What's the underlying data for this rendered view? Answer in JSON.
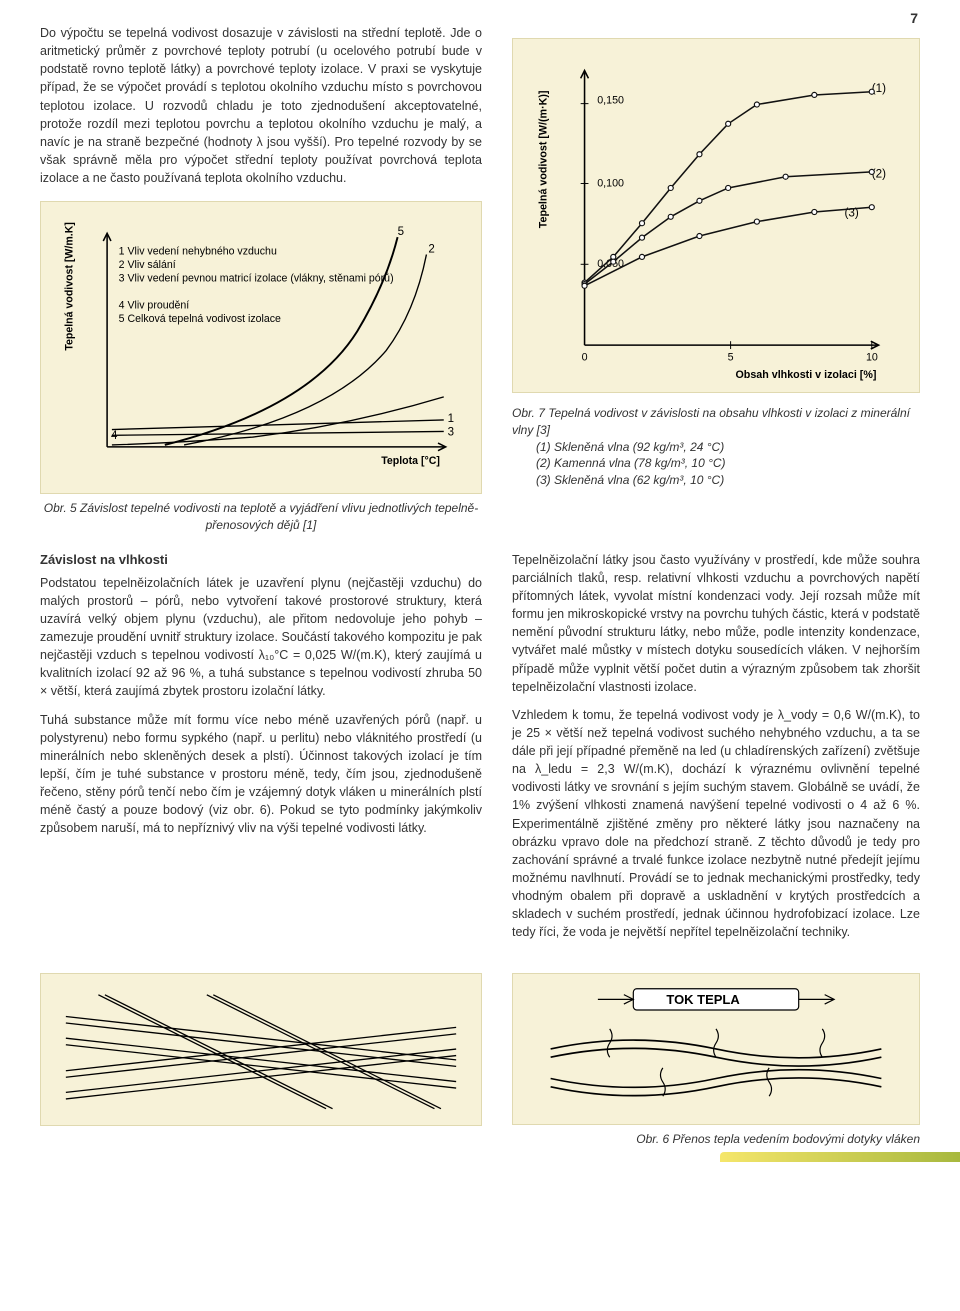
{
  "page_number": "7",
  "intro_paragraph": "Do výpočtu se tepelná vodivost dosazuje v závislosti na střední teplotě. Jde o aritmetický průměr z povrchové teploty potrubí (u ocelového potrubí bude v podstatě rovno teplotě látky) a povrchové teploty izolace. V praxi se vyskytuje případ, že se výpočet provádí s teplotou okolního vzduchu místo s povrchovou teplotou izolace. U rozvodů chladu je toto zjednodušení akceptovatelné, protože rozdíl mezi teplotou povrchu a teplotou okolního vzduchu je malý, a navíc je na straně bezpečné (hodnoty λ jsou vyšší). Pro tepelné rozvody by se však správně měla pro výpočet střední teploty používat povrchová teplota izolace a ne často používaná teplota okolního vzduchu.",
  "fig5": {
    "y_axis_label": "Tepelná vodivost [W/m.K]",
    "x_axis_label": "Teplota [°C]",
    "legend": [
      "1  Vliv vedení nehybného vzduchu",
      "2  Vliv sálání",
      "3  Vliv vedení pevnou matricí izolace (vlákny, stěnami pórů)",
      "4  Vliv proudění",
      "5  Celková tepelná vodivost izolace"
    ],
    "curve_labels": [
      "1",
      "2",
      "3",
      "4",
      "5"
    ],
    "background": "#f7f2d8",
    "line_color": "#111111",
    "caption": "Obr. 5  Závislost tepelné vodivosti na teplotě a vyjádření vlivu jednotlivých tepelně-přenosových dějů [1]"
  },
  "fig7": {
    "y_axis_label": "Tepelná vodivost [W/(m·K)]",
    "x_axis_label": "Obsah vlhkosti v izolaci [%]",
    "y_ticks": [
      "0,050",
      "0,100",
      "0,150"
    ],
    "x_ticks": [
      "0",
      "5",
      "10"
    ],
    "series_labels": [
      "(1)",
      "(2)",
      "(3)"
    ],
    "series": [
      {
        "label": "(1)",
        "points": [
          [
            0,
            0.039
          ],
          [
            1,
            0.055
          ],
          [
            2,
            0.076
          ],
          [
            3,
            0.098
          ],
          [
            4,
            0.119
          ],
          [
            5,
            0.138
          ],
          [
            6,
            0.15
          ],
          [
            8,
            0.156
          ],
          [
            10,
            0.158
          ]
        ]
      },
      {
        "label": "(2)",
        "points": [
          [
            0,
            0.038
          ],
          [
            1,
            0.052
          ],
          [
            2,
            0.067
          ],
          [
            3,
            0.08
          ],
          [
            4,
            0.09
          ],
          [
            5,
            0.098
          ],
          [
            7,
            0.105
          ],
          [
            10,
            0.108
          ]
        ]
      },
      {
        "label": "(3)",
        "points": [
          [
            0,
            0.037
          ],
          [
            2,
            0.055
          ],
          [
            4,
            0.068
          ],
          [
            6,
            0.077
          ],
          [
            8,
            0.083
          ],
          [
            10,
            0.086
          ]
        ]
      }
    ],
    "ylim": [
      0,
      0.17
    ],
    "xlim": [
      0,
      10
    ],
    "background": "#f7f2d8",
    "line_color": "#111111",
    "marker": "circle",
    "caption_title": "Obr. 7  Tepelná vodivost v závislosti na obsahu vlhkosti v izolaci z minerální vlny [3]",
    "caption_lines": [
      "(1) Skleněná vlna (92 kg/m³, 24 °C)",
      "(2) Kamenná vlna (78 kg/m³, 10 °C)",
      "(3) Skleněná vlna (62 kg/m³, 10 °C)"
    ]
  },
  "dep_heading": "Závislost na vlhkosti",
  "dep_p1": "Podstatou tepelněizolačních látek je uzavření plynu (nejčastěji vzduchu) do malých prostorů – pórů, nebo vytvoření takové prostorové struktury, která uzavírá velký objem plynu (vzduchu), ale přitom nedovoluje jeho pohyb – zamezuje proudění uvnitř struktury izolace. Součástí takového kompozitu je pak nejčastěji vzduch s tepelnou vodivostí λ₁₀°C = 0,025 W/(m.K), který zaujímá u kvalitních izolací 92 až 96 %, a tuhá substance s tepelnou vodivostí zhruba 50 × větší, která zaujímá zbytek prostoru izolační látky.",
  "dep_p2": "Tuhá substance může mít formu více nebo méně uzavřených pórů (např. u polystyrenu) nebo formu sypkého (např. u perlitu) nebo vláknitého prostředí (u minerálních nebo skleněných desek a plstí). Účinnost takových izolací je tím lepší, čím je tuhé substance v prostoru méně, tedy, čím jsou, zjednodušeně řečeno, stěny pórů tenčí nebo čím je vzájemný dotyk vláken u minerálních plstí méně častý a pouze bodový (viz obr. 6). Pokud se tyto podmínky jakýmkoliv způsobem naruší, má to nepříznivý vliv na výši tepelné vodivosti látky.",
  "right_p1": "Tepelněizolační látky jsou často využívány v prostředí, kde může souhra parciálních tlaků, resp. relativní vlhkosti vzduchu a povrchových napětí přítomných látek, vyvolat místní kondenzaci vody. Její rozsah může mít formu jen mikroskopické vrstvy na povrchu tuhých částic, která v podstatě nemění původní strukturu látky, nebo může, podle intenzity kondenzace, vytvářet malé můstky v místech dotyku sousedících vláken. V nejhorším případě může vyplnit větší počet dutin a výrazným způsobem tak zhoršit tepelněizolační vlastnosti izolace.",
  "right_p2": "Vzhledem k tomu, že tepelná vodivost vody je λ_vody = 0,6 W/(m.K), to je 25 × větší než tepelná vodivost suchého nehybného vzduchu, a ta se dále při její případné přeměně na led (u chladírenských zařízení) zvětšuje na λ_ledu = 2,3 W/(m.K), dochází k výraznému ovlivnění tepelné vodivosti látky ve srovnání s jejím suchým stavem. Globálně se uvádí, že 1% zvýšení vlhkosti znamená navýšení tepelné vodivosti o 4 až 6 %. Experimentálně zjištěné změny pro některé látky jsou naznačeny na obrázku vpravo dole na předchozí straně. Z těchto důvodů je tedy pro zachování správné a trvalé funkce izolace nezbytně nutné předejít jejímu možnému navlhnutí. Provádí se to jednak mechanickými prostředky, tedy vhodným obalem při dopravě a uskladnění v krytých prostředcích a skladech v suchém prostředí, jednak účinnou hydrofobizací izolace. Lze tedy říci, že voda je největší nepřítel tepelněizolační techniky.",
  "fig6": {
    "heat_flow_label": "TOK TEPLA",
    "caption": "Obr. 6  Přenos tepla vedením bodovými dotyky vláken"
  }
}
